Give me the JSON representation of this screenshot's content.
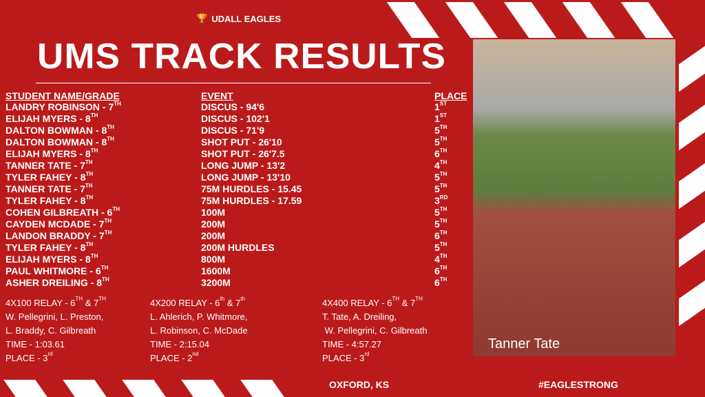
{
  "brand": {
    "name": "UDALL EAGLES",
    "icon": "trophy-icon"
  },
  "title": "UMS TRACK RESULTS",
  "headers": {
    "name": "STUDENT NAME/GRADE",
    "event": "EVENT",
    "place": "PLACE"
  },
  "rows": [
    {
      "name": "LANDRY ROBINSON - 7",
      "g": "TH",
      "event": "DISCUS - 94'6",
      "p": "1",
      "ps": "ST"
    },
    {
      "name": "ELIJAH MYERS - 8",
      "g": "TH",
      "event": "DISCUS - 102'1",
      "p": "1",
      "ps": "ST"
    },
    {
      "name": "DALTON BOWMAN - 8",
      "g": "TH",
      "event": "DISCUS - 71'9",
      "p": "5",
      "ps": "TH"
    },
    {
      "name": "DALTON BOWMAN - 8",
      "g": "TH",
      "event": "SHOT PUT - 26'10",
      "p": "5",
      "ps": "TH"
    },
    {
      "name": "ELIJAH MYERS - 8",
      "g": "TH",
      "event": "SHOT PUT - 26'7.5",
      "p": "6",
      "ps": "TH"
    },
    {
      "name": "TANNER TATE - 7",
      "g": "TH",
      "event": "LONG JUMP - 13'2",
      "p": "4",
      "ps": "TH"
    },
    {
      "name": "TYLER FAHEY - 8",
      "g": "TH",
      "event": "LONG JUMP - 13'10",
      "p": "5",
      "ps": "TH"
    },
    {
      "name": "TANNER TATE - 7",
      "g": "TH",
      "event": "75M HURDLES - 15.45",
      "p": "5",
      "ps": "TH"
    },
    {
      "name": "TYLER FAHEY - 8",
      "g": "TH",
      "event": "75M HURDLES - 17.59",
      "p": "3",
      "ps": "RD"
    },
    {
      "name": "COHEN GILBREATH - 6",
      "g": "TH",
      "event": "100M",
      "p": "5",
      "ps": "TH"
    },
    {
      "name": "CAYDEN MCDADE - 7",
      "g": "TH",
      "event": "200M",
      "p": "5",
      "ps": "TH"
    },
    {
      "name": "LANDON BRADDY - 7",
      "g": "TH",
      "event": "200M",
      "p": "6",
      "ps": "TH"
    },
    {
      "name": "TYLER FAHEY - 8",
      "g": "TH",
      "event": "200M HURDLES",
      "p": "5",
      "ps": "TH"
    },
    {
      "name": "ELIJAH MYERS - 8",
      "g": "TH",
      "event": "800M",
      "p": "4",
      "ps": "TH"
    },
    {
      "name": "PAUL WHITMORE - 6",
      "g": "TH",
      "event": "1600M",
      "p": "6",
      "ps": "TH"
    },
    {
      "name": "ASHER DREILING - 8",
      "g": "TH",
      "event": "3200M",
      "p": "6",
      "ps": "TH"
    }
  ],
  "relays": [
    {
      "t1": "4X100 RELAY - 6",
      "s1": "TH",
      "t2": " & 7",
      "s2": "TH",
      "l1": "W. Pellegrini, L. Preston,",
      "l2": "L. Braddy, C. Gilbreath",
      "time": "TIME - 1:03.61",
      "place": "PLACE - 3",
      "ps": "rd"
    },
    {
      "t1": "4X200 RELAY - 6",
      "s1": "th",
      "t2": " & 7",
      "s2": "th",
      "l1": "L. Ahlerich, P. Whitmore,",
      "l2": "L. Robinson, C. McDade",
      "time": "TIME - 2:15.04",
      "place": "PLACE - 2",
      "ps": "nd"
    },
    {
      "t1": "4X400 RELAY - 6",
      "s1": "TH",
      "t2": " & 7",
      "s2": "TH",
      "l1": "T. Tate, A. Dreiling,",
      "l2": " W. Pellegrini, C. Gilbreath",
      "time": "TIME - 4:57.27",
      "place": "PLACE - 3",
      "ps": "rd"
    }
  ],
  "photo": {
    "caption": "Tanner Tate"
  },
  "footer": {
    "location": "OXFORD, KS",
    "hashtag": "#EAGLESTRONG"
  }
}
